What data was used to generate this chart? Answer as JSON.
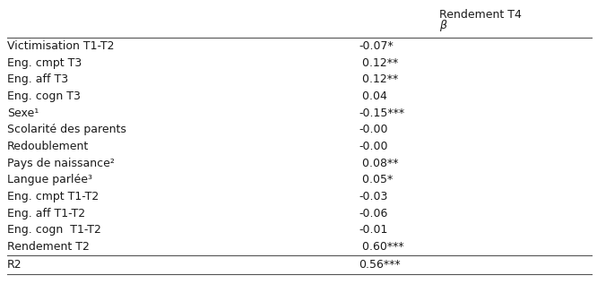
{
  "title": "Rendement T4",
  "subtitle": "β",
  "rows": [
    [
      "Victimisation T1-T2",
      "-0.07*"
    ],
    [
      "Eng. cmpt T3",
      " 0.12**"
    ],
    [
      "Eng. aff T3",
      " 0.12**"
    ],
    [
      "Eng. cogn T3",
      " 0.04"
    ],
    [
      "Sexe¹",
      "-0.15***"
    ],
    [
      "Scolarité des parents",
      "-0.00"
    ],
    [
      "Redoublement",
      "-0.00"
    ],
    [
      "Pays de naissance²",
      " 0.08**"
    ],
    [
      "Langue parlée³",
      " 0.05*"
    ],
    [
      "Eng. cmpt T1-T2",
      "-0.03"
    ],
    [
      "Eng. aff T1-T2",
      "-0.06"
    ],
    [
      "Eng. cogn  T1-T2",
      "-0.01"
    ],
    [
      "Rendement T2",
      " 0.60***"
    ]
  ],
  "footer": [
    "R2",
    "0.56***"
  ],
  "font_size": 9.0,
  "bg_color": "#ffffff",
  "text_color": "#1a1a1a",
  "line_color": "#555555"
}
